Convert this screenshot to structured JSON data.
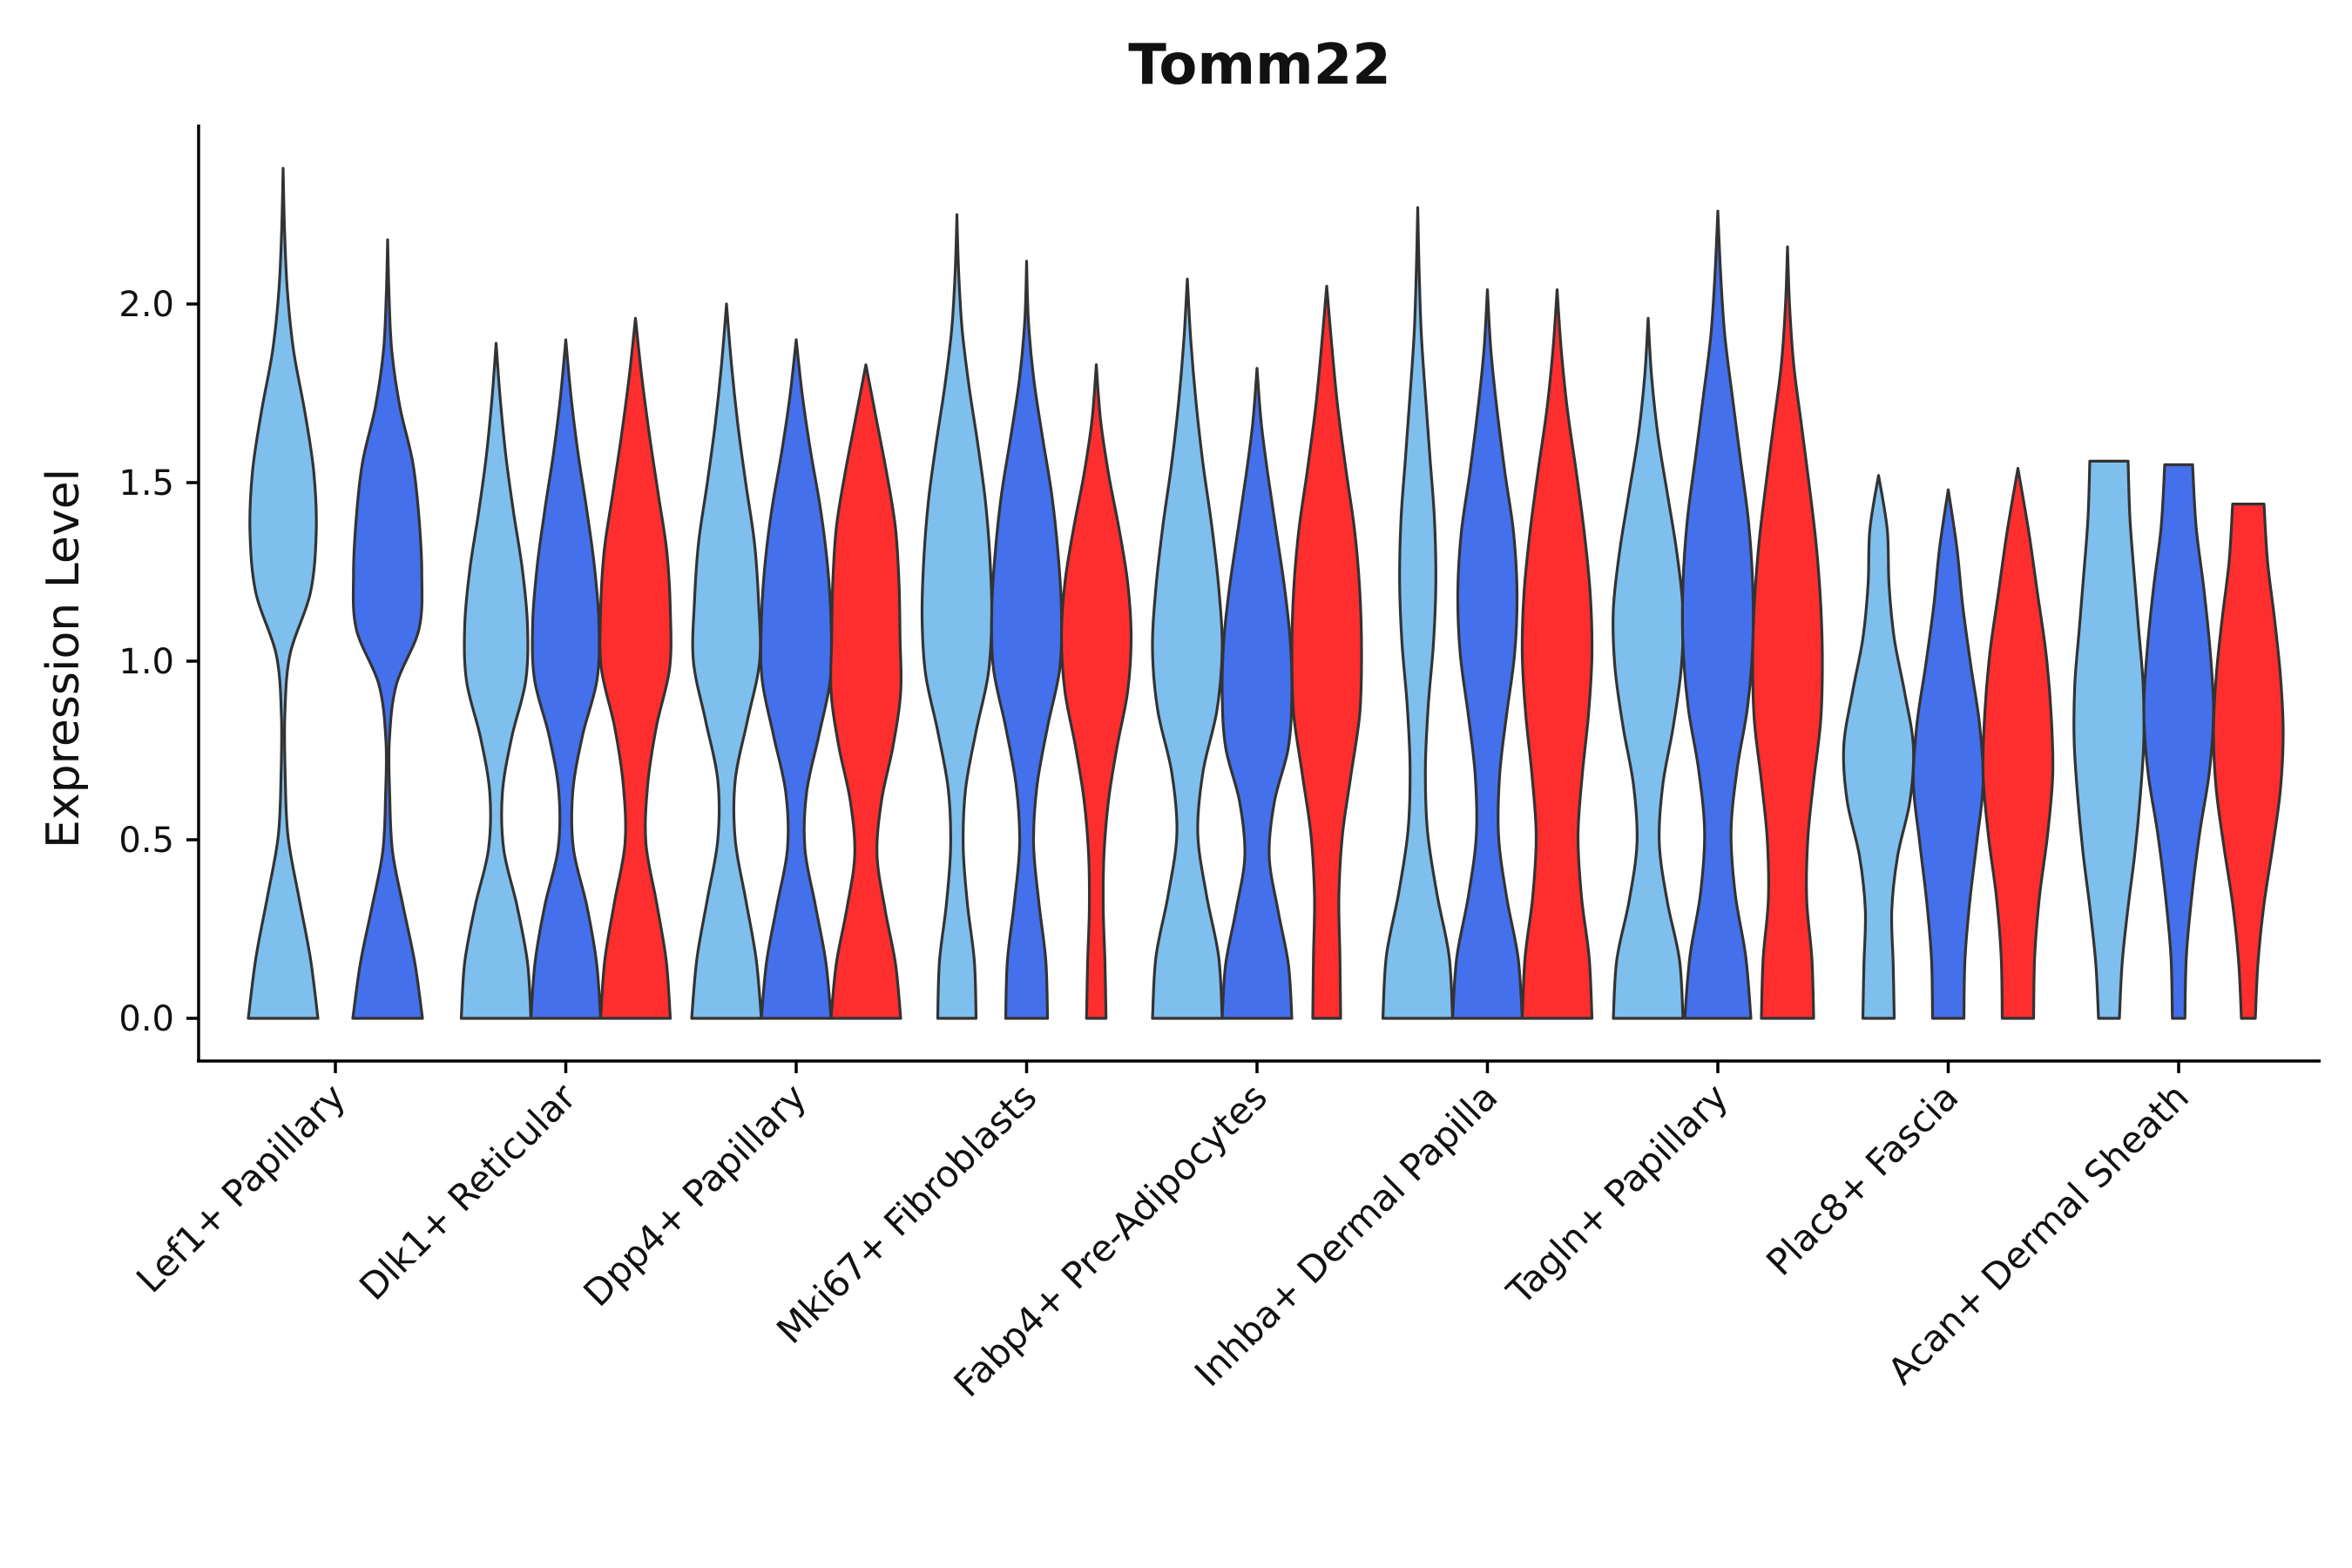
{
  "chart_data": {
    "type": "violin",
    "title": "Tomm22",
    "xlabel": "",
    "ylabel": "Expression Level",
    "ylim": [
      -0.12,
      2.5
    ],
    "yticks": [
      "0.0",
      "0.5",
      "1.0",
      "1.5",
      "2.0"
    ],
    "ytick_values": [
      0,
      0.5,
      1.0,
      1.5,
      2.0
    ],
    "legend": "none",
    "series": [
      {
        "name": "group 1",
        "color": "#7FBFEE"
      },
      {
        "name": "group 2",
        "color": "#4570EB"
      },
      {
        "name": "group 3",
        "color": "#FF2E2E"
      }
    ],
    "categories": [
      {
        "label": "Lef1+ Papillary",
        "violins": [
          {
            "series": 0,
            "max": 2.38,
            "widths": [
              1.0,
              0.78,
              0.45,
              0.14,
              0.06,
              0.05,
              0.2,
              0.78,
              0.95,
              0.88,
              0.62,
              0.3,
              0.12,
              0.04,
              0.0
            ]
          },
          {
            "series": 1,
            "max": 2.18,
            "widths": [
              1.0,
              0.78,
              0.45,
              0.14,
              0.06,
              0.05,
              0.25,
              0.9,
              0.98,
              0.9,
              0.72,
              0.35,
              0.12,
              0.04,
              0.0
            ]
          }
        ]
      },
      {
        "label": "Dlk1+ Reticular",
        "violins": [
          {
            "series": 0,
            "max": 1.89,
            "widths": [
              1.0,
              0.9,
              0.6,
              0.22,
              0.18,
              0.45,
              0.85,
              0.9,
              0.75,
              0.5,
              0.28,
              0.12,
              0.0
            ]
          },
          {
            "series": 1,
            "max": 1.9,
            "widths": [
              1.0,
              0.88,
              0.6,
              0.22,
              0.2,
              0.48,
              0.9,
              0.95,
              0.82,
              0.6,
              0.35,
              0.15,
              0.0
            ]
          },
          {
            "series": 2,
            "max": 1.96,
            "widths": [
              1.0,
              0.88,
              0.6,
              0.3,
              0.35,
              0.6,
              0.98,
              1.0,
              0.9,
              0.65,
              0.4,
              0.18,
              0.0
            ]
          }
        ]
      },
      {
        "label": "Dpp4+ Papillary",
        "violins": [
          {
            "series": 0,
            "max": 2.0,
            "widths": [
              1.0,
              0.85,
              0.55,
              0.25,
              0.25,
              0.6,
              0.95,
              0.92,
              0.8,
              0.55,
              0.32,
              0.14,
              0.0
            ]
          },
          {
            "series": 1,
            "max": 1.9,
            "widths": [
              1.0,
              0.85,
              0.55,
              0.25,
              0.3,
              0.65,
              0.98,
              1.0,
              0.9,
              0.7,
              0.42,
              0.18,
              0.0
            ]
          },
          {
            "series": 2,
            "max": 1.83,
            "widths": [
              1.0,
              0.85,
              0.55,
              0.32,
              0.45,
              0.78,
              1.0,
              0.98,
              0.95,
              0.85,
              0.6,
              0.3,
              0.0
            ]
          }
        ]
      },
      {
        "label": "Mki67+ Fibroblasts",
        "violins": [
          {
            "series": 0,
            "max": 2.25,
            "widths": [
              0.55,
              0.5,
              0.3,
              0.18,
              0.25,
              0.55,
              0.9,
              1.0,
              0.95,
              0.82,
              0.6,
              0.35,
              0.15,
              0.05,
              0.0
            ]
          },
          {
            "series": 1,
            "max": 2.12,
            "widths": [
              0.6,
              0.55,
              0.35,
              0.2,
              0.3,
              0.6,
              0.95,
              1.0,
              0.9,
              0.72,
              0.45,
              0.2,
              0.05,
              0.0
            ]
          },
          {
            "series": 2,
            "max": 1.83,
            "widths": [
              0.28,
              0.25,
              0.2,
              0.22,
              0.35,
              0.6,
              0.9,
              1.0,
              0.9,
              0.65,
              0.35,
              0.12,
              0.0
            ]
          }
        ]
      },
      {
        "label": "Fabp4+ Pre-Adipocytes",
        "violins": [
          {
            "series": 0,
            "max": 2.07,
            "widths": [
              1.0,
              0.9,
              0.55,
              0.3,
              0.45,
              0.85,
              1.0,
              0.9,
              0.7,
              0.45,
              0.25,
              0.1,
              0.0
            ]
          },
          {
            "series": 1,
            "max": 1.82,
            "widths": [
              1.0,
              0.9,
              0.6,
              0.35,
              0.5,
              0.9,
              1.0,
              0.95,
              0.78,
              0.55,
              0.32,
              0.12,
              0.0
            ]
          },
          {
            "series": 2,
            "max": 2.05,
            "widths": [
              0.4,
              0.38,
              0.35,
              0.45,
              0.7,
              0.95,
              1.0,
              0.95,
              0.8,
              0.55,
              0.32,
              0.15,
              0.0
            ]
          }
        ]
      },
      {
        "label": "Inhba+ Dermal Papilla",
        "violins": [
          {
            "series": 0,
            "max": 2.27,
            "widths": [
              1.0,
              0.9,
              0.55,
              0.28,
              0.22,
              0.3,
              0.45,
              0.52,
              0.48,
              0.35,
              0.22,
              0.1,
              0.04,
              0.0
            ]
          },
          {
            "series": 1,
            "max": 2.04,
            "widths": [
              1.0,
              0.88,
              0.55,
              0.32,
              0.35,
              0.55,
              0.78,
              0.85,
              0.75,
              0.5,
              0.28,
              0.1,
              0.0
            ]
          },
          {
            "series": 2,
            "max": 2.04,
            "widths": [
              1.0,
              0.92,
              0.7,
              0.6,
              0.72,
              0.9,
              1.0,
              0.95,
              0.78,
              0.55,
              0.3,
              0.12,
              0.0
            ]
          }
        ]
      },
      {
        "label": "Tagln+ Papillary",
        "violins": [
          {
            "series": 0,
            "max": 1.96,
            "widths": [
              1.0,
              0.9,
              0.55,
              0.32,
              0.42,
              0.72,
              0.95,
              1.0,
              0.82,
              0.55,
              0.28,
              0.1,
              0.0
            ]
          },
          {
            "series": 1,
            "max": 2.26,
            "widths": [
              0.95,
              0.8,
              0.5,
              0.38,
              0.55,
              0.85,
              1.0,
              1.0,
              0.88,
              0.65,
              0.42,
              0.2,
              0.08,
              0.0
            ]
          },
          {
            "series": 2,
            "max": 2.16,
            "widths": [
              0.75,
              0.7,
              0.55,
              0.58,
              0.75,
              0.95,
              1.0,
              0.95,
              0.82,
              0.62,
              0.4,
              0.18,
              0.06,
              0.0
            ]
          }
        ]
      },
      {
        "label": "Plac8+ Fascia",
        "violins": [
          {
            "series": 0,
            "max": 1.52,
            "widths": [
              0.45,
              0.42,
              0.38,
              0.55,
              0.9,
              1.0,
              0.75,
              0.45,
              0.3,
              0.25,
              0.0
            ]
          },
          {
            "series": 1,
            "max": 1.48,
            "widths": [
              0.45,
              0.48,
              0.62,
              0.82,
              1.0,
              0.9,
              0.65,
              0.42,
              0.25,
              0.0
            ]
          },
          {
            "series": 2,
            "max": 1.54,
            "widths": [
              0.45,
              0.48,
              0.62,
              0.85,
              1.0,
              0.95,
              0.8,
              0.55,
              0.3,
              0.0
            ]
          }
        ]
      },
      {
        "label": "Acan+ Dermal Sheath",
        "violins": [
          {
            "series": 0,
            "max": 1.56,
            "widths": [
              0.3,
              0.38,
              0.55,
              0.75,
              0.9,
              1.0,
              0.98,
              0.85,
              0.72,
              0.6,
              0.55
            ]
          },
          {
            "series": 1,
            "max": 1.55,
            "widths": [
              0.18,
              0.22,
              0.38,
              0.6,
              0.88,
              1.0,
              0.9,
              0.72,
              0.5,
              0.4
            ]
          },
          {
            "series": 2,
            "max": 1.44,
            "widths": [
              0.2,
              0.28,
              0.45,
              0.7,
              0.92,
              1.0,
              0.92,
              0.75,
              0.55,
              0.45
            ]
          }
        ]
      }
    ]
  }
}
